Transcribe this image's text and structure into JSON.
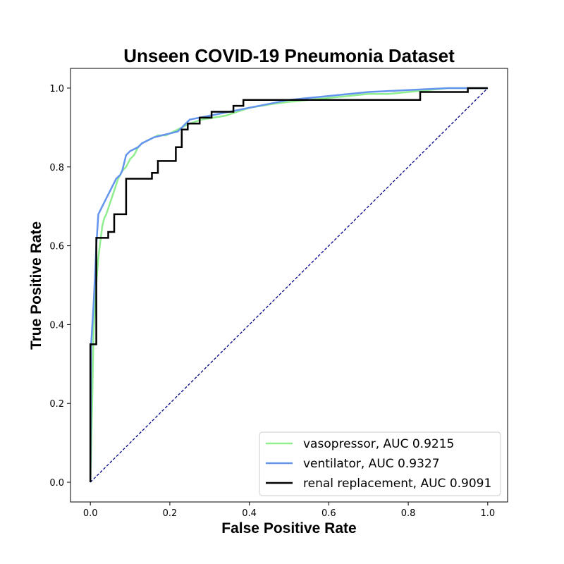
{
  "chart_data": {
    "type": "line",
    "title": "Unseen COVID-19 Pneumonia Dataset",
    "xlabel": "False Positive Rate",
    "ylabel": "True Positive Rate",
    "xlim": [
      -0.05,
      1.05
    ],
    "ylim": [
      -0.05,
      1.05
    ],
    "xticks": [
      "0.0",
      "0.2",
      "0.4",
      "0.6",
      "0.8",
      "1.0"
    ],
    "yticks": [
      "0.0",
      "0.2",
      "0.4",
      "0.6",
      "0.8",
      "1.0"
    ],
    "grid": false,
    "legend_position": "lower-right",
    "diagonal": {
      "x": [
        0,
        1
      ],
      "y": [
        0,
        1
      ],
      "color": "#00008b",
      "style": "dashed"
    },
    "series": [
      {
        "name": "vasopressor, AUC 0.9215",
        "color": "#90ee90",
        "x": [
          0,
          0.005,
          0.008,
          0.012,
          0.016,
          0.02,
          0.025,
          0.03,
          0.035,
          0.04,
          0.05,
          0.06,
          0.07,
          0.08,
          0.09,
          0.1,
          0.11,
          0.12,
          0.13,
          0.15,
          0.17,
          0.19,
          0.21,
          0.23,
          0.25,
          0.28,
          0.31,
          0.34,
          0.37,
          0.4,
          0.43,
          0.46,
          0.5,
          0.55,
          0.6,
          0.65,
          0.7,
          0.75,
          0.8,
          0.85,
          0.9,
          0.95,
          1.0
        ],
        "y": [
          0,
          0.22,
          0.38,
          0.45,
          0.52,
          0.57,
          0.61,
          0.65,
          0.67,
          0.68,
          0.71,
          0.74,
          0.77,
          0.79,
          0.8,
          0.82,
          0.83,
          0.85,
          0.86,
          0.87,
          0.88,
          0.88,
          0.89,
          0.9,
          0.91,
          0.92,
          0.925,
          0.93,
          0.94,
          0.95,
          0.955,
          0.96,
          0.965,
          0.97,
          0.975,
          0.98,
          0.985,
          0.985,
          0.99,
          0.995,
          1.0,
          1.0,
          1.0
        ]
      },
      {
        "name": "ventilator, AUC 0.9327",
        "color": "#6495ed",
        "x": [
          0,
          0.002,
          0.005,
          0.008,
          0.012,
          0.015,
          0.02,
          0.025,
          0.03,
          0.035,
          0.04,
          0.045,
          0.05,
          0.055,
          0.06,
          0.065,
          0.07,
          0.075,
          0.08,
          0.085,
          0.09,
          0.1,
          0.12,
          0.13,
          0.14,
          0.15,
          0.16,
          0.18,
          0.2,
          0.22,
          0.25,
          0.3,
          0.35,
          0.4,
          0.45,
          0.5,
          0.6,
          0.7,
          0.8,
          0.9,
          1.0
        ],
        "y": [
          0,
          0.35,
          0.4,
          0.45,
          0.53,
          0.6,
          0.68,
          0.69,
          0.7,
          0.71,
          0.72,
          0.73,
          0.74,
          0.75,
          0.76,
          0.77,
          0.775,
          0.78,
          0.79,
          0.81,
          0.83,
          0.84,
          0.85,
          0.86,
          0.865,
          0.87,
          0.875,
          0.88,
          0.885,
          0.89,
          0.92,
          0.93,
          0.94,
          0.95,
          0.96,
          0.97,
          0.98,
          0.99,
          0.995,
          1.0,
          1.0
        ]
      },
      {
        "name": "renal replacement, AUC 0.9091",
        "color": "#000000",
        "x": [
          0,
          0,
          0.015,
          0.015,
          0.045,
          0.045,
          0.06,
          0.06,
          0.09,
          0.09,
          0.155,
          0.155,
          0.17,
          0.17,
          0.215,
          0.215,
          0.23,
          0.23,
          0.245,
          0.245,
          0.275,
          0.275,
          0.305,
          0.305,
          0.36,
          0.36,
          0.385,
          0.385,
          0.83,
          0.83,
          0.95,
          0.95,
          1.0
        ],
        "y": [
          0,
          0.35,
          0.35,
          0.62,
          0.62,
          0.635,
          0.635,
          0.68,
          0.68,
          0.77,
          0.77,
          0.785,
          0.785,
          0.815,
          0.815,
          0.85,
          0.85,
          0.895,
          0.895,
          0.91,
          0.91,
          0.925,
          0.925,
          0.94,
          0.94,
          0.955,
          0.955,
          0.97,
          0.97,
          0.99,
          0.99,
          1.0,
          1.0
        ]
      }
    ]
  }
}
